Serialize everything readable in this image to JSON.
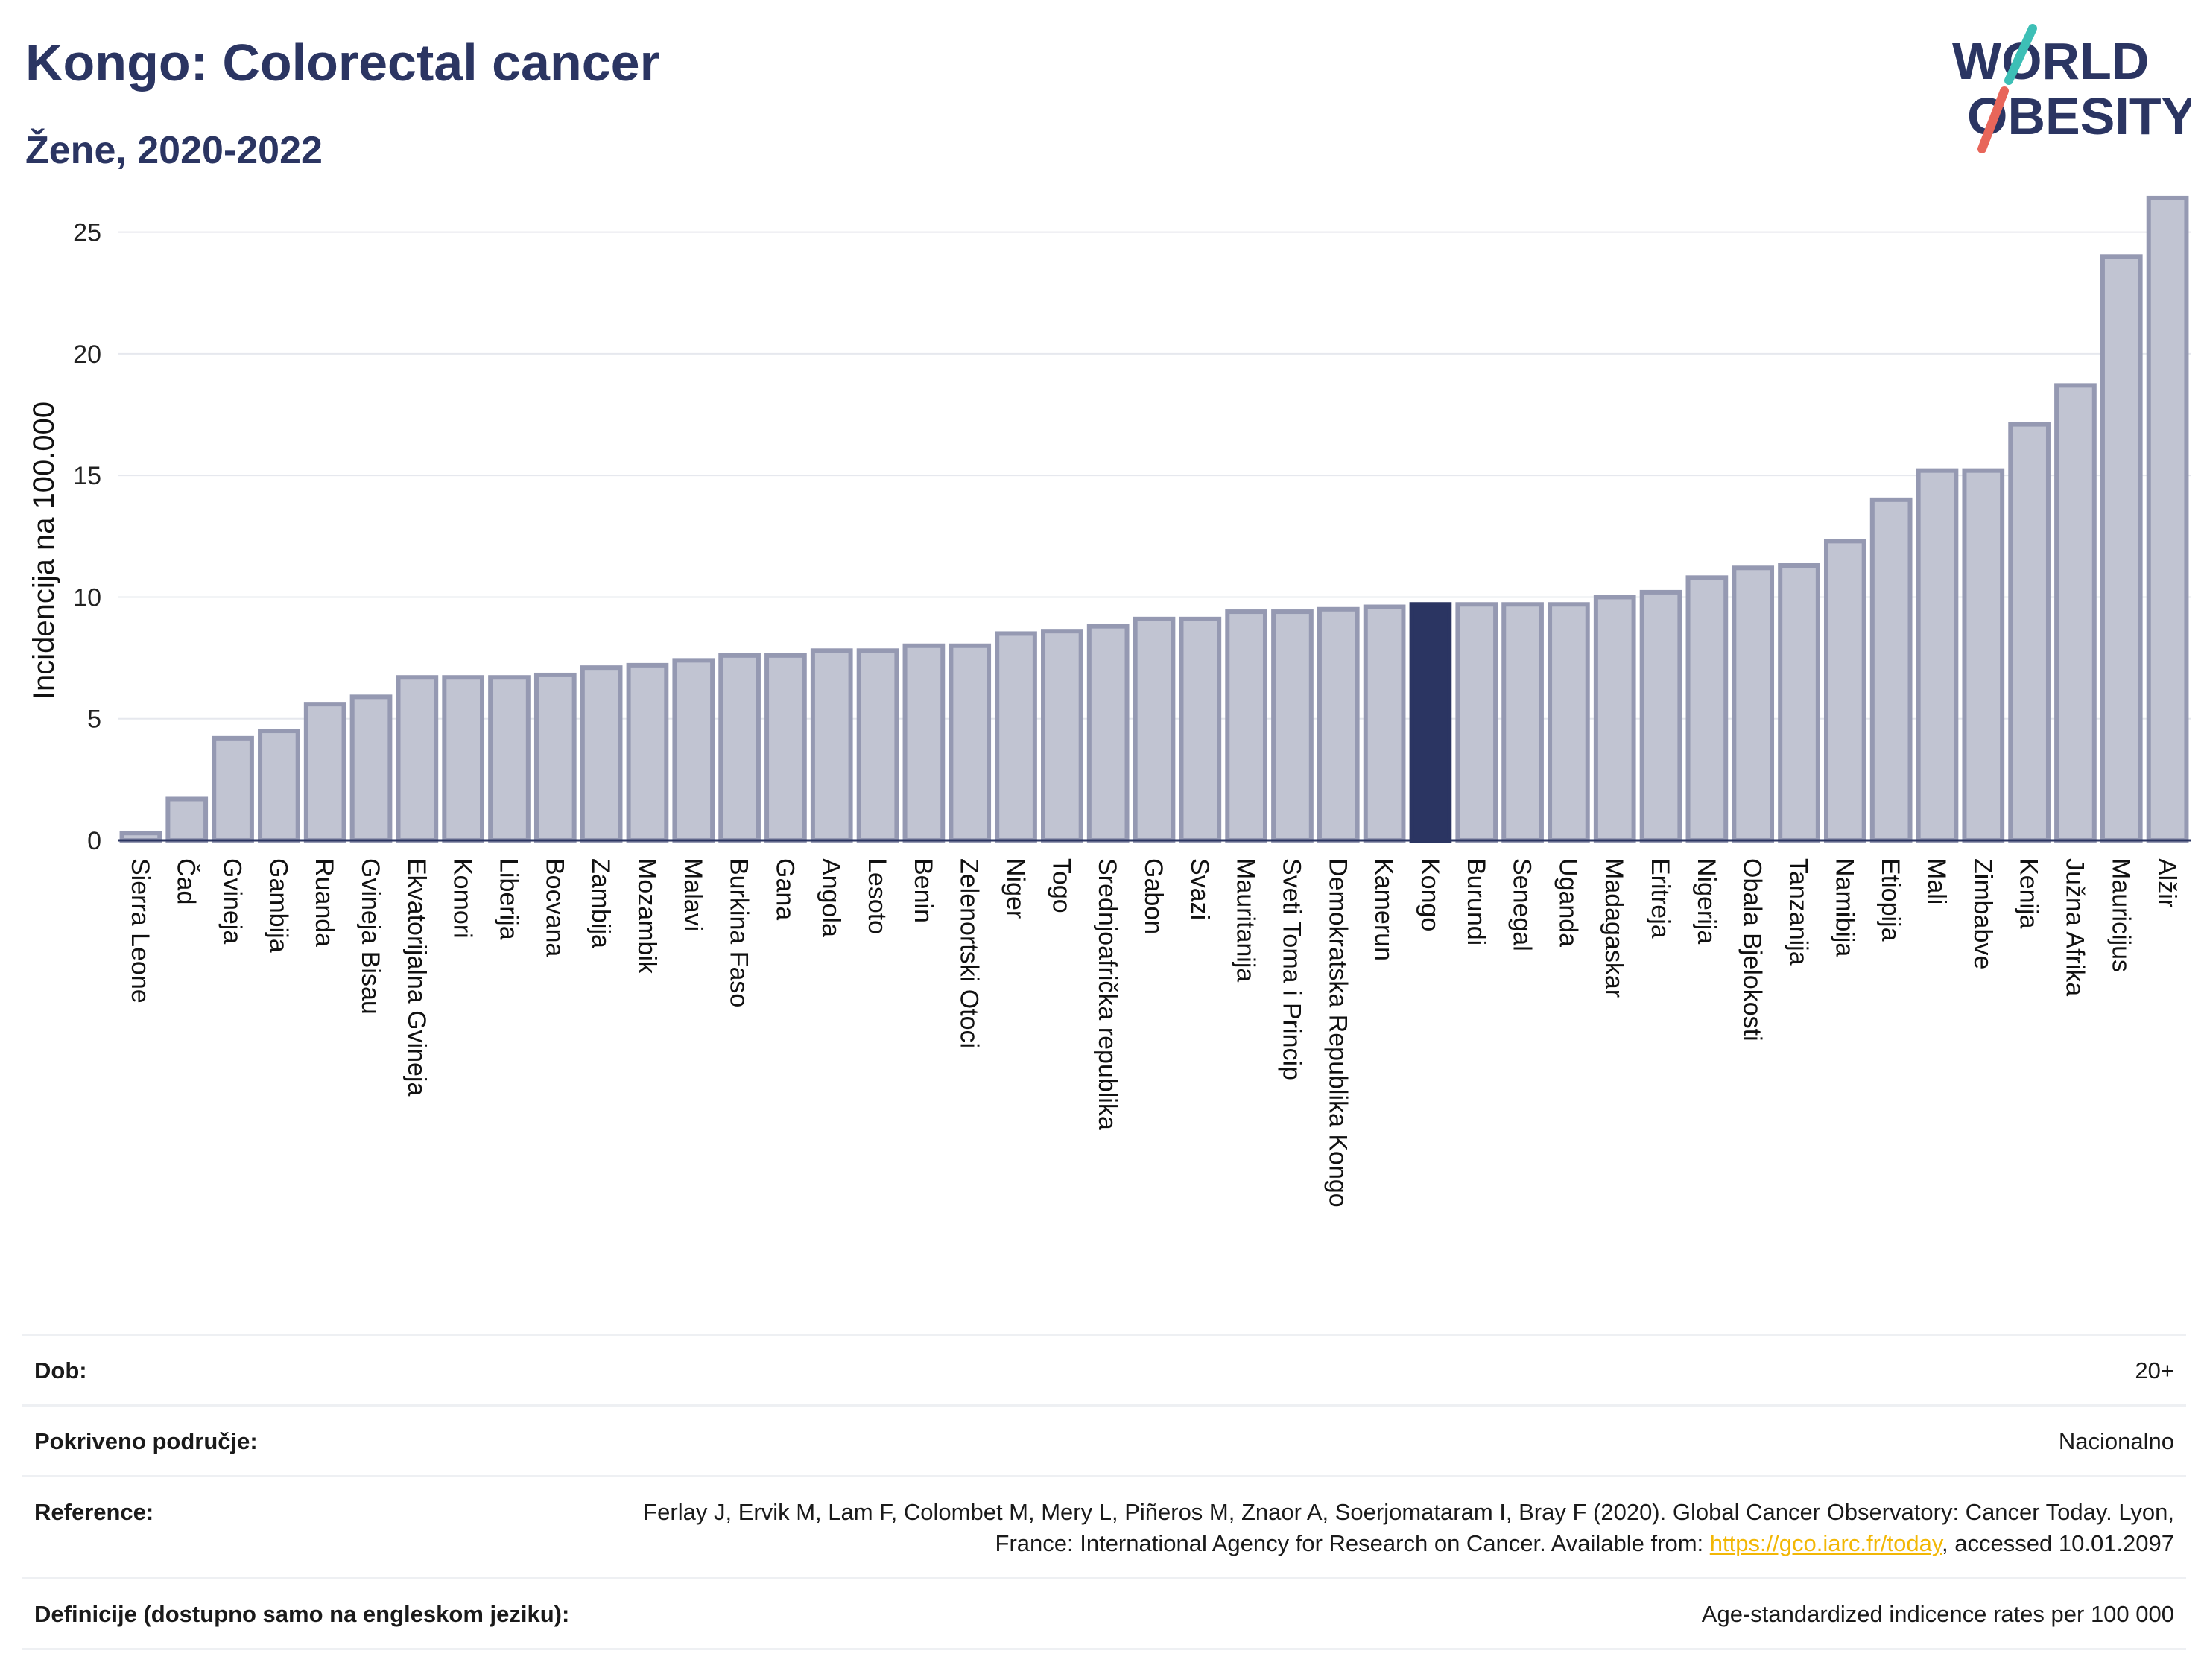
{
  "header": {
    "title": "Kongo: Colorectal cancer",
    "subtitle": "Žene, 2020-2022"
  },
  "logo": {
    "line1": "WORLD",
    "line2": "OBESITY",
    "colors": {
      "text": "#2b3562",
      "slash_top": "#3dbfb6",
      "slash_bottom": "#e8665a"
    }
  },
  "chart_data": {
    "type": "bar",
    "ylabel": "Incidencija na 100.000",
    "ylim": [
      0,
      27.5
    ],
    "yticks": [
      0,
      5,
      10,
      15,
      20,
      25
    ],
    "grid": true,
    "highlight": "Kongo",
    "colors": {
      "bar": "#c1c4d2",
      "bar_edge": "#9599b2",
      "highlight": "#2b3562"
    },
    "categories": [
      "Sierra Leone",
      "Čad",
      "Gvineja",
      "Gambija",
      "Ruanda",
      "Gvineja Bisau",
      "Ekvatorijalna Gvineja",
      "Komori",
      "Liberija",
      "Bocvana",
      "Zambija",
      "Mozambik",
      "Malavi",
      "Burkina Faso",
      "Gana",
      "Angola",
      "Lesoto",
      "Benin",
      "Zelenortski Otoci",
      "Niger",
      "Togo",
      "Srednjoafrička republika",
      "Gabon",
      "Svazi",
      "Mauritanija",
      "Sveti Toma i Princip",
      "Demokratska Republika Kongo",
      "Kamerun",
      "Kongo",
      "Burundi",
      "Senegal",
      "Uganda",
      "Madagaskar",
      "Eritreja",
      "Nigerija",
      "Obala Bjelokosti",
      "Tanzanija",
      "Namibija",
      "Etiopija",
      "Mali",
      "Zimbabve",
      "Kenija",
      "Južna Afrika",
      "Mauricijus",
      "Alžir"
    ],
    "values": [
      0.3,
      1.7,
      4.2,
      4.5,
      5.6,
      5.9,
      6.7,
      6.7,
      6.7,
      6.8,
      7.1,
      7.2,
      7.4,
      7.6,
      7.6,
      7.8,
      7.8,
      8.0,
      8.0,
      8.5,
      8.6,
      8.8,
      9.1,
      9.1,
      9.4,
      9.4,
      9.5,
      9.6,
      9.7,
      9.7,
      9.7,
      9.7,
      10.0,
      10.2,
      10.8,
      11.2,
      11.3,
      12.3,
      14.0,
      15.2,
      15.2,
      17.1,
      18.7,
      24.0,
      26.4
    ]
  },
  "info": [
    {
      "label": "Dob:",
      "value": "20+"
    },
    {
      "label": "Pokriveno područje:",
      "value": "Nacionalno"
    },
    {
      "label": "Reference:",
      "value_pre": "Ferlay J, Ervik M, Lam F, Colombet M, Mery L, Piñeros M, Znaor A, Soerjomataram I, Bray F (2020). Global Cancer Observatory: Cancer Today. Lyon, France: International Agency for Research on Cancer. Available from: ",
      "link": "https://gco.iarc.fr/today",
      "value_post": ", accessed 10.01.2097"
    },
    {
      "label": "Definicije (dostupno samo na engleskom jeziku):",
      "value": "Age-standardized indicence rates per 100 000"
    }
  ]
}
